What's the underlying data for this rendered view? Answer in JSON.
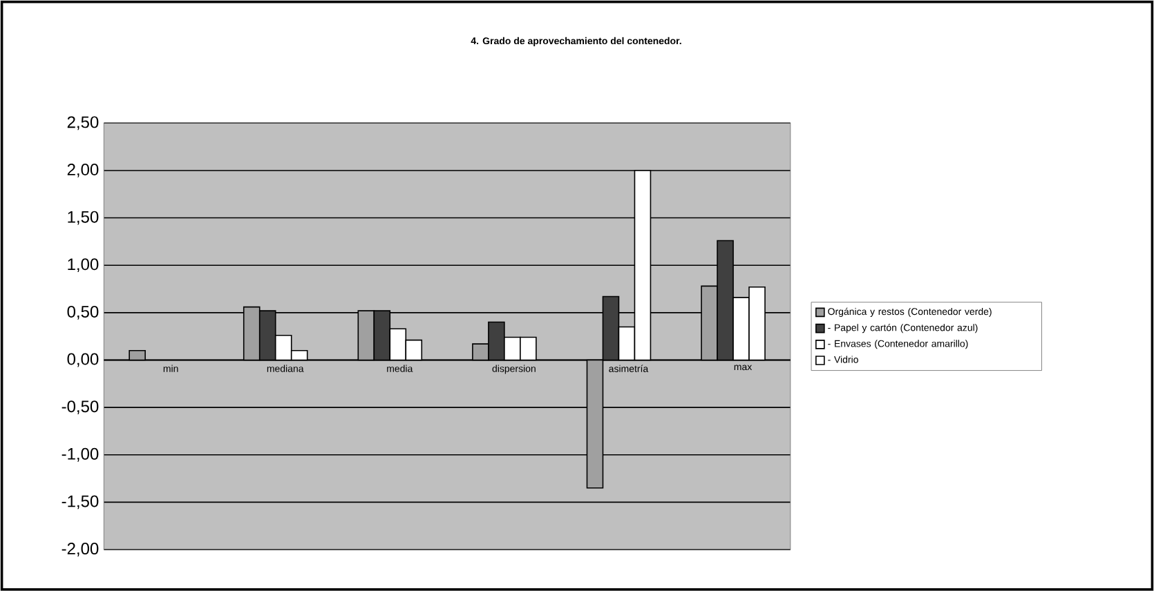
{
  "chart_data": {
    "type": "bar",
    "title": "4. Grado de aprovechamiento del contenedor.",
    "categories": [
      "min",
      "mediana",
      "media",
      "dispersion",
      "asimetría",
      "max"
    ],
    "series": [
      {
        "name": "Orgánica y restos (Contenedor verde)",
        "color": "#a0a0a0",
        "values": [
          0.1,
          0.56,
          0.52,
          0.17,
          -1.35,
          0.78
        ]
      },
      {
        "name": "- Papel y cartón (Contenedor azul)",
        "color": "#404040",
        "values": [
          null,
          0.52,
          0.52,
          0.4,
          0.67,
          1.26
        ]
      },
      {
        "name": "- Envases (Contenedor amarillo)",
        "color": "#ffffff",
        "values": [
          null,
          0.26,
          0.33,
          0.24,
          0.35,
          0.66
        ]
      },
      {
        "name": "- Vidrio",
        "color": "#ffffff",
        "values": [
          null,
          0.1,
          0.21,
          0.24,
          2.0,
          0.77
        ]
      }
    ],
    "ylim": [
      -2.0,
      2.5
    ],
    "yticks": [
      {
        "value": -2.0,
        "label": "-2,00"
      },
      {
        "value": -1.5,
        "label": "-1,50"
      },
      {
        "value": -1.0,
        "label": "-1,00"
      },
      {
        "value": -0.5,
        "label": "-0,50"
      },
      {
        "value": 0,
        "label": "0,00"
      },
      {
        "value": 0.5,
        "label": "0,50"
      },
      {
        "value": 1.0,
        "label": "1,00"
      },
      {
        "value": 1.5,
        "label": "1,50"
      },
      {
        "value": 2.0,
        "label": "2,00"
      },
      {
        "value": 2.5,
        "label": "2,50"
      }
    ],
    "grid": "y",
    "legend": "right"
  }
}
